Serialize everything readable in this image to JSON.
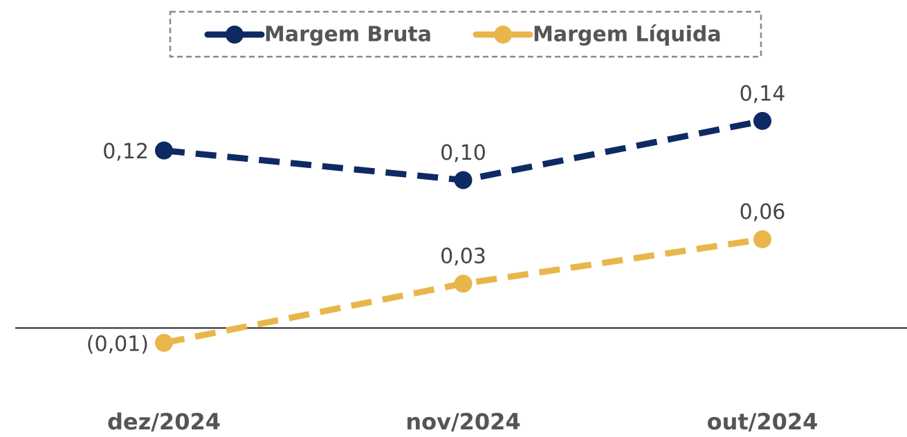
{
  "chart_data": {
    "type": "line",
    "categories": [
      "dez/2024",
      "nov/2024",
      "out/2024"
    ],
    "series": [
      {
        "name": "Margem Bruta",
        "color": "#0d2a63",
        "values": [
          0.12,
          0.1,
          0.14
        ],
        "value_labels": [
          "0,12",
          "0,10",
          "0,14"
        ]
      },
      {
        "name": "Margem Líquida",
        "color": "#e8b64a",
        "values": [
          -0.01,
          0.03,
          0.06
        ],
        "value_labels": [
          "(0,01)",
          "0,03",
          "0,06"
        ]
      }
    ],
    "ylim": [
      -0.04,
      0.175
    ],
    "legend": "top",
    "grid": false
  }
}
